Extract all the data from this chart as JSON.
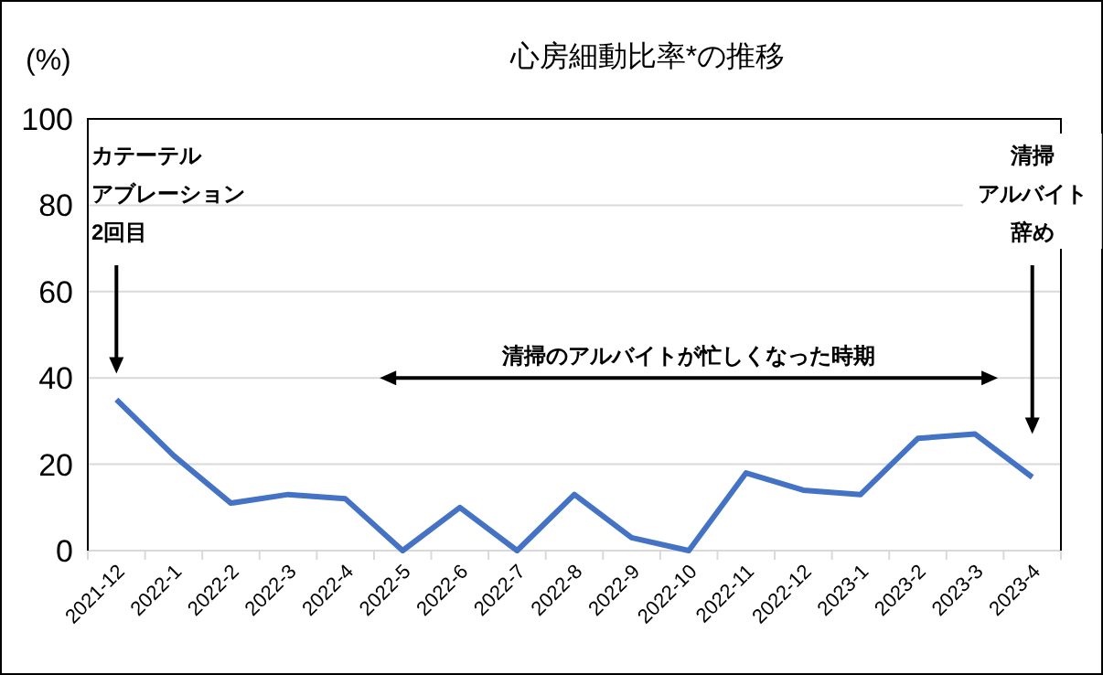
{
  "chart_data": {
    "type": "line",
    "title": "心房細動比率*の推移",
    "ylabel": "(%)",
    "categories": [
      "2021-12",
      "2022-1",
      "2022-2",
      "2022-3",
      "2022-4",
      "2022-5",
      "2022-6",
      "2022-7",
      "2022-8",
      "2022-9",
      "2022-10",
      "2022-11",
      "2022-12",
      "2023-1",
      "2023-2",
      "2023-3",
      "2023-4"
    ],
    "series": [
      {
        "color": "#4472c4",
        "values": [
          35,
          22,
          11,
          13,
          12,
          0,
          10,
          0,
          13,
          3,
          0,
          18,
          14,
          13,
          26,
          27,
          17
        ]
      }
    ],
    "ylim": [
      0,
      100
    ],
    "yticks": [
      0,
      20,
      40,
      60,
      80,
      100
    ],
    "grid": "y",
    "marker": "none",
    "line_style": "solid",
    "annotations": [
      "カテーテルアブレーション2回目",
      "清掃のアルバイトが忙しくなった時期",
      "清掃アルバイト辞め"
    ]
  }
}
